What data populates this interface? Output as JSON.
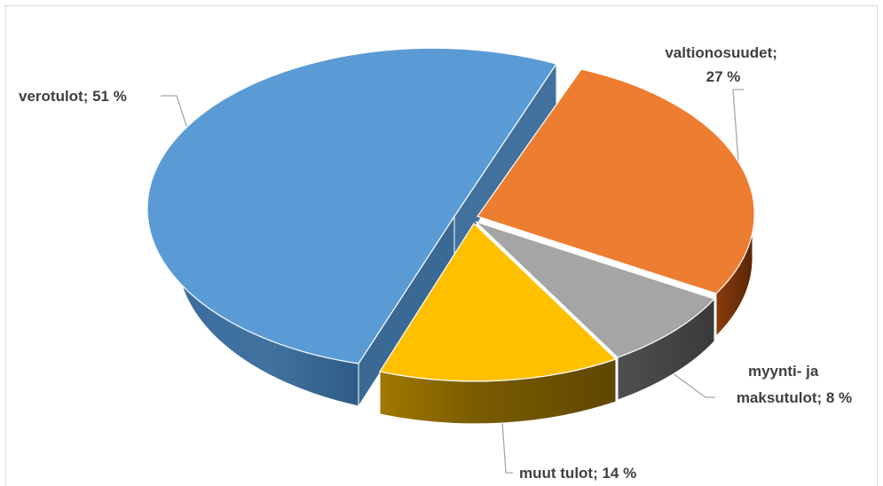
{
  "chart_data": {
    "type": "pie",
    "style": "3d-exploded",
    "legend": "none",
    "title": "",
    "slices": [
      {
        "label": "verotulot",
        "value": 51,
        "display": "verotulot; 51 %",
        "color": "#5b9bd5"
      },
      {
        "label": "valtionosuudet",
        "value": 27,
        "display": "valtionosuudet; 27 %",
        "color": "#ed7d31"
      },
      {
        "label": "myynti- ja maksutulot",
        "value": 8,
        "display": "myynti- ja maksutulot; 8 %",
        "color": "#a5a5a5"
      },
      {
        "label": "muut tulot",
        "value": 14,
        "display": "muut tulot; 14 %",
        "color": "#ffc000"
      }
    ]
  },
  "labels": {
    "verotulot": [
      "verotulot; 51 %"
    ],
    "valtionosuudet": [
      "valtionosuudet;",
      "27 %"
    ],
    "myynti": [
      "myynti- ja",
      "maksutulot; 8 %"
    ],
    "muut": [
      "muut tulot; 14 %"
    ]
  }
}
